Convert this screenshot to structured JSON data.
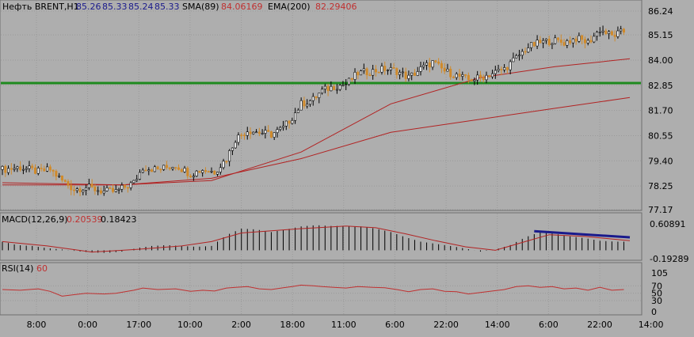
{
  "colors": {
    "background": "#aeaeae",
    "grid": "#9a9a9a",
    "axis_text": "#000000",
    "candle_bull": "#000000",
    "candle_bear": "#d08a2a",
    "sma": "#b22222",
    "ema": "#b22222",
    "support_line": "#1e8a1e",
    "macd_hist": "#000000",
    "macd_signal": "#b22222",
    "macd_trend": "#1a1a8c",
    "rsi_line": "#c03030",
    "label_blue": "#1a1a8c",
    "label_red": "#c03030"
  },
  "header": {
    "symbol_label": "Нефть BRENT,H1",
    "ohlc": [
      "85.26",
      "85.33",
      "85.24",
      "85.33"
    ],
    "sma_label": "SMA(89)",
    "sma_value": "84.06169",
    "ema_label": "EMA(200)",
    "ema_value": "82.29406"
  },
  "macd_header": {
    "label": "MACD(12,26,9)",
    "value1": "0.20539",
    "value2": "0.18423"
  },
  "rsi_header": {
    "label": "RSI(14)",
    "value": "60"
  },
  "chart_data": [
    {
      "type": "candlestick",
      "title": "Нефть BRENT,H1",
      "yaxis_ticks": [
        "86.24",
        "85.15",
        "84.00",
        "82.85",
        "81.70",
        "80.55",
        "79.40",
        "78.25",
        "77.17"
      ],
      "ylim": [
        77.17,
        86.24
      ],
      "xaxis_ticks": [
        "8:00",
        "0:00",
        "17:00",
        "10:00",
        "2:00",
        "18:00",
        "11:00",
        "6:00",
        "22:00",
        "14:00",
        "6:00",
        "22:00",
        "14:00"
      ],
      "support_level": 82.95,
      "close_path": [
        [
          0,
          79.0
        ],
        [
          6,
          79.1
        ],
        [
          12,
          78.9
        ],
        [
          16,
          79.0
        ],
        [
          20,
          78.5
        ],
        [
          24,
          78.1
        ],
        [
          28,
          78.2
        ],
        [
          34,
          78.0
        ],
        [
          38,
          78.0
        ],
        [
          44,
          78.4
        ],
        [
          47,
          79.1
        ],
        [
          52,
          79.0
        ],
        [
          58,
          79.2
        ],
        [
          63,
          78.8
        ],
        [
          67,
          79.0
        ],
        [
          71,
          78.9
        ],
        [
          75,
          79.5
        ],
        [
          78,
          80.4
        ],
        [
          82,
          80.8
        ],
        [
          86,
          80.7
        ],
        [
          90,
          80.6
        ],
        [
          94,
          80.9
        ],
        [
          97,
          81.4
        ],
        [
          100,
          82.0
        ],
        [
          104,
          82.2
        ],
        [
          107,
          82.6
        ],
        [
          111,
          82.8
        ],
        [
          115,
          82.9
        ],
        [
          119,
          83.4
        ],
        [
          124,
          83.5
        ],
        [
          128,
          83.6
        ],
        [
          132,
          83.5
        ],
        [
          136,
          83.2
        ],
        [
          140,
          83.6
        ],
        [
          144,
          83.9
        ],
        [
          148,
          83.5
        ],
        [
          152,
          83.3
        ],
        [
          156,
          83.1
        ],
        [
          160,
          83.2
        ],
        [
          164,
          83.4
        ],
        [
          168,
          83.6
        ],
        [
          172,
          84.1
        ],
        [
          176,
          84.6
        ],
        [
          180,
          84.8
        ],
        [
          184,
          84.9
        ],
        [
          188,
          84.8
        ],
        [
          192,
          85.0
        ],
        [
          196,
          84.8
        ],
        [
          200,
          85.4
        ],
        [
          204,
          85.1
        ],
        [
          208,
          85.3
        ]
      ],
      "series": [
        {
          "name": "SMA(89)",
          "values": [
            [
              0,
              78.3
            ],
            [
              40,
              78.3
            ],
            [
              70,
              78.5
            ],
            [
              100,
              79.8
            ],
            [
              130,
              82.0
            ],
            [
              160,
              83.2
            ],
            [
              185,
              83.7
            ],
            [
              210,
              84.06
            ]
          ]
        },
        {
          "name": "EMA(200)",
          "values": [
            [
              0,
              78.4
            ],
            [
              40,
              78.3
            ],
            [
              70,
              78.6
            ],
            [
              100,
              79.5
            ],
            [
              130,
              80.7
            ],
            [
              160,
              81.3
            ],
            [
              185,
              81.8
            ],
            [
              210,
              82.29
            ]
          ]
        }
      ]
    },
    {
      "type": "bar",
      "title": "MACD(12,26,9)",
      "yaxis_ticks": [
        "0.60891",
        "-0.19289"
      ],
      "ylim": [
        -0.19289,
        0.60891
      ],
      "histogram": [
        [
          0,
          0.2
        ],
        [
          5,
          0.12
        ],
        [
          10,
          0.1
        ],
        [
          15,
          0.05
        ],
        [
          20,
          0.02
        ],
        [
          25,
          -0.02
        ],
        [
          30,
          -0.05
        ],
        [
          35,
          -0.06
        ],
        [
          40,
          -0.03
        ],
        [
          45,
          0.05
        ],
        [
          50,
          0.1
        ],
        [
          55,
          0.12
        ],
        [
          60,
          0.1
        ],
        [
          65,
          0.08
        ],
        [
          70,
          0.1
        ],
        [
          75,
          0.35
        ],
        [
          80,
          0.5
        ],
        [
          85,
          0.48
        ],
        [
          90,
          0.42
        ],
        [
          95,
          0.48
        ],
        [
          100,
          0.55
        ],
        [
          105,
          0.58
        ],
        [
          110,
          0.56
        ],
        [
          115,
          0.56
        ],
        [
          120,
          0.55
        ],
        [
          125,
          0.5
        ],
        [
          130,
          0.42
        ],
        [
          135,
          0.3
        ],
        [
          140,
          0.2
        ],
        [
          145,
          0.15
        ],
        [
          150,
          0.1
        ],
        [
          155,
          0.04
        ],
        [
          160,
          -0.03
        ],
        [
          165,
          0.02
        ],
        [
          170,
          0.12
        ],
        [
          175,
          0.3
        ],
        [
          180,
          0.42
        ],
        [
          185,
          0.38
        ],
        [
          190,
          0.32
        ],
        [
          195,
          0.28
        ],
        [
          200,
          0.22
        ],
        [
          205,
          0.2
        ],
        [
          210,
          0.2
        ]
      ],
      "signal": [
        [
          0,
          0.2
        ],
        [
          15,
          0.1
        ],
        [
          30,
          -0.04
        ],
        [
          45,
          0.02
        ],
        [
          60,
          0.1
        ],
        [
          70,
          0.2
        ],
        [
          80,
          0.4
        ],
        [
          90,
          0.45
        ],
        [
          100,
          0.5
        ],
        [
          115,
          0.56
        ],
        [
          125,
          0.52
        ],
        [
          135,
          0.38
        ],
        [
          145,
          0.22
        ],
        [
          155,
          0.08
        ],
        [
          165,
          0.0
        ],
        [
          175,
          0.2
        ],
        [
          183,
          0.36
        ],
        [
          195,
          0.32
        ],
        [
          210,
          0.22
        ]
      ],
      "divergence_line": [
        [
          178,
          0.44
        ],
        [
          210,
          0.3
        ]
      ]
    },
    {
      "type": "line",
      "title": "RSI(14)",
      "yaxis_ticks": [
        "105",
        "70",
        "50",
        "30",
        "0"
      ],
      "ylim": [
        0,
        105
      ],
      "series": [
        {
          "name": "RSI(14)",
          "values": [
            [
              0,
              60
            ],
            [
              6,
              58
            ],
            [
              12,
              62
            ],
            [
              16,
              55
            ],
            [
              20,
              42
            ],
            [
              24,
              46
            ],
            [
              28,
              50
            ],
            [
              34,
              48
            ],
            [
              38,
              50
            ],
            [
              44,
              58
            ],
            [
              47,
              64
            ],
            [
              52,
              60
            ],
            [
              58,
              62
            ],
            [
              63,
              55
            ],
            [
              67,
              58
            ],
            [
              71,
              56
            ],
            [
              75,
              64
            ],
            [
              78,
              66
            ],
            [
              82,
              68
            ],
            [
              86,
              62
            ],
            [
              90,
              60
            ],
            [
              94,
              65
            ],
            [
              97,
              68
            ],
            [
              100,
              72
            ],
            [
              104,
              70
            ],
            [
              107,
              68
            ],
            [
              111,
              66
            ],
            [
              115,
              64
            ],
            [
              119,
              68
            ],
            [
              124,
              66
            ],
            [
              128,
              65
            ],
            [
              132,
              60
            ],
            [
              136,
              54
            ],
            [
              140,
              60
            ],
            [
              144,
              62
            ],
            [
              148,
              55
            ],
            [
              152,
              54
            ],
            [
              156,
              48
            ],
            [
              160,
              52
            ],
            [
              164,
              56
            ],
            [
              168,
              60
            ],
            [
              172,
              68
            ],
            [
              176,
              70
            ],
            [
              180,
              66
            ],
            [
              184,
              68
            ],
            [
              188,
              62
            ],
            [
              192,
              64
            ],
            [
              196,
              58
            ],
            [
              200,
              66
            ],
            [
              204,
              58
            ],
            [
              208,
              60
            ]
          ]
        }
      ]
    }
  ]
}
